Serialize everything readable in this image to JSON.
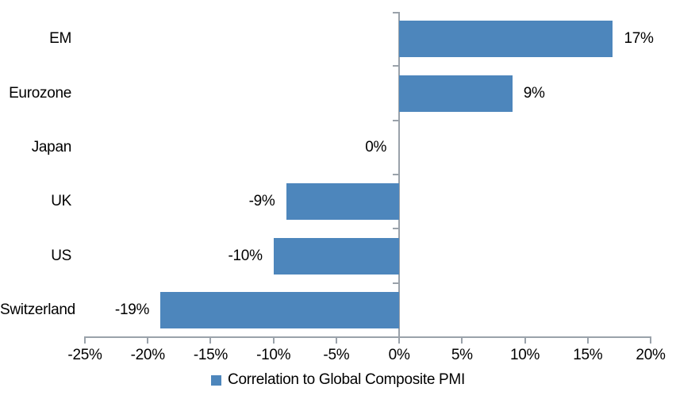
{
  "chart_data": {
    "type": "bar",
    "orientation": "horizontal",
    "categories": [
      "EM",
      "Eurozone",
      "Japan",
      "UK",
      "US",
      "Switzerland"
    ],
    "values": [
      17,
      9,
      0,
      -9,
      -10,
      -19
    ],
    "value_labels": [
      "17%",
      "9%",
      "0%",
      "-9%",
      "-10%",
      "-19%"
    ],
    "x_ticks": [
      -25,
      -20,
      -15,
      -10,
      -5,
      0,
      5,
      10,
      15,
      20
    ],
    "x_tick_labels": [
      "-25%",
      "-20%",
      "-15%",
      "-10%",
      "-5%",
      "0%",
      "5%",
      "10%",
      "15%",
      "20%"
    ],
    "xlim": [
      -25,
      20
    ],
    "grid": false,
    "legend_position": "bottom-center",
    "legend": [
      {
        "label": "Correlation to Global Composite PMI",
        "color": "#4D86BC"
      }
    ],
    "bar_color": "#4D86BC",
    "axis_color": "#9AA2AA",
    "text_color": "#000000",
    "background": "#FFFFFF"
  }
}
